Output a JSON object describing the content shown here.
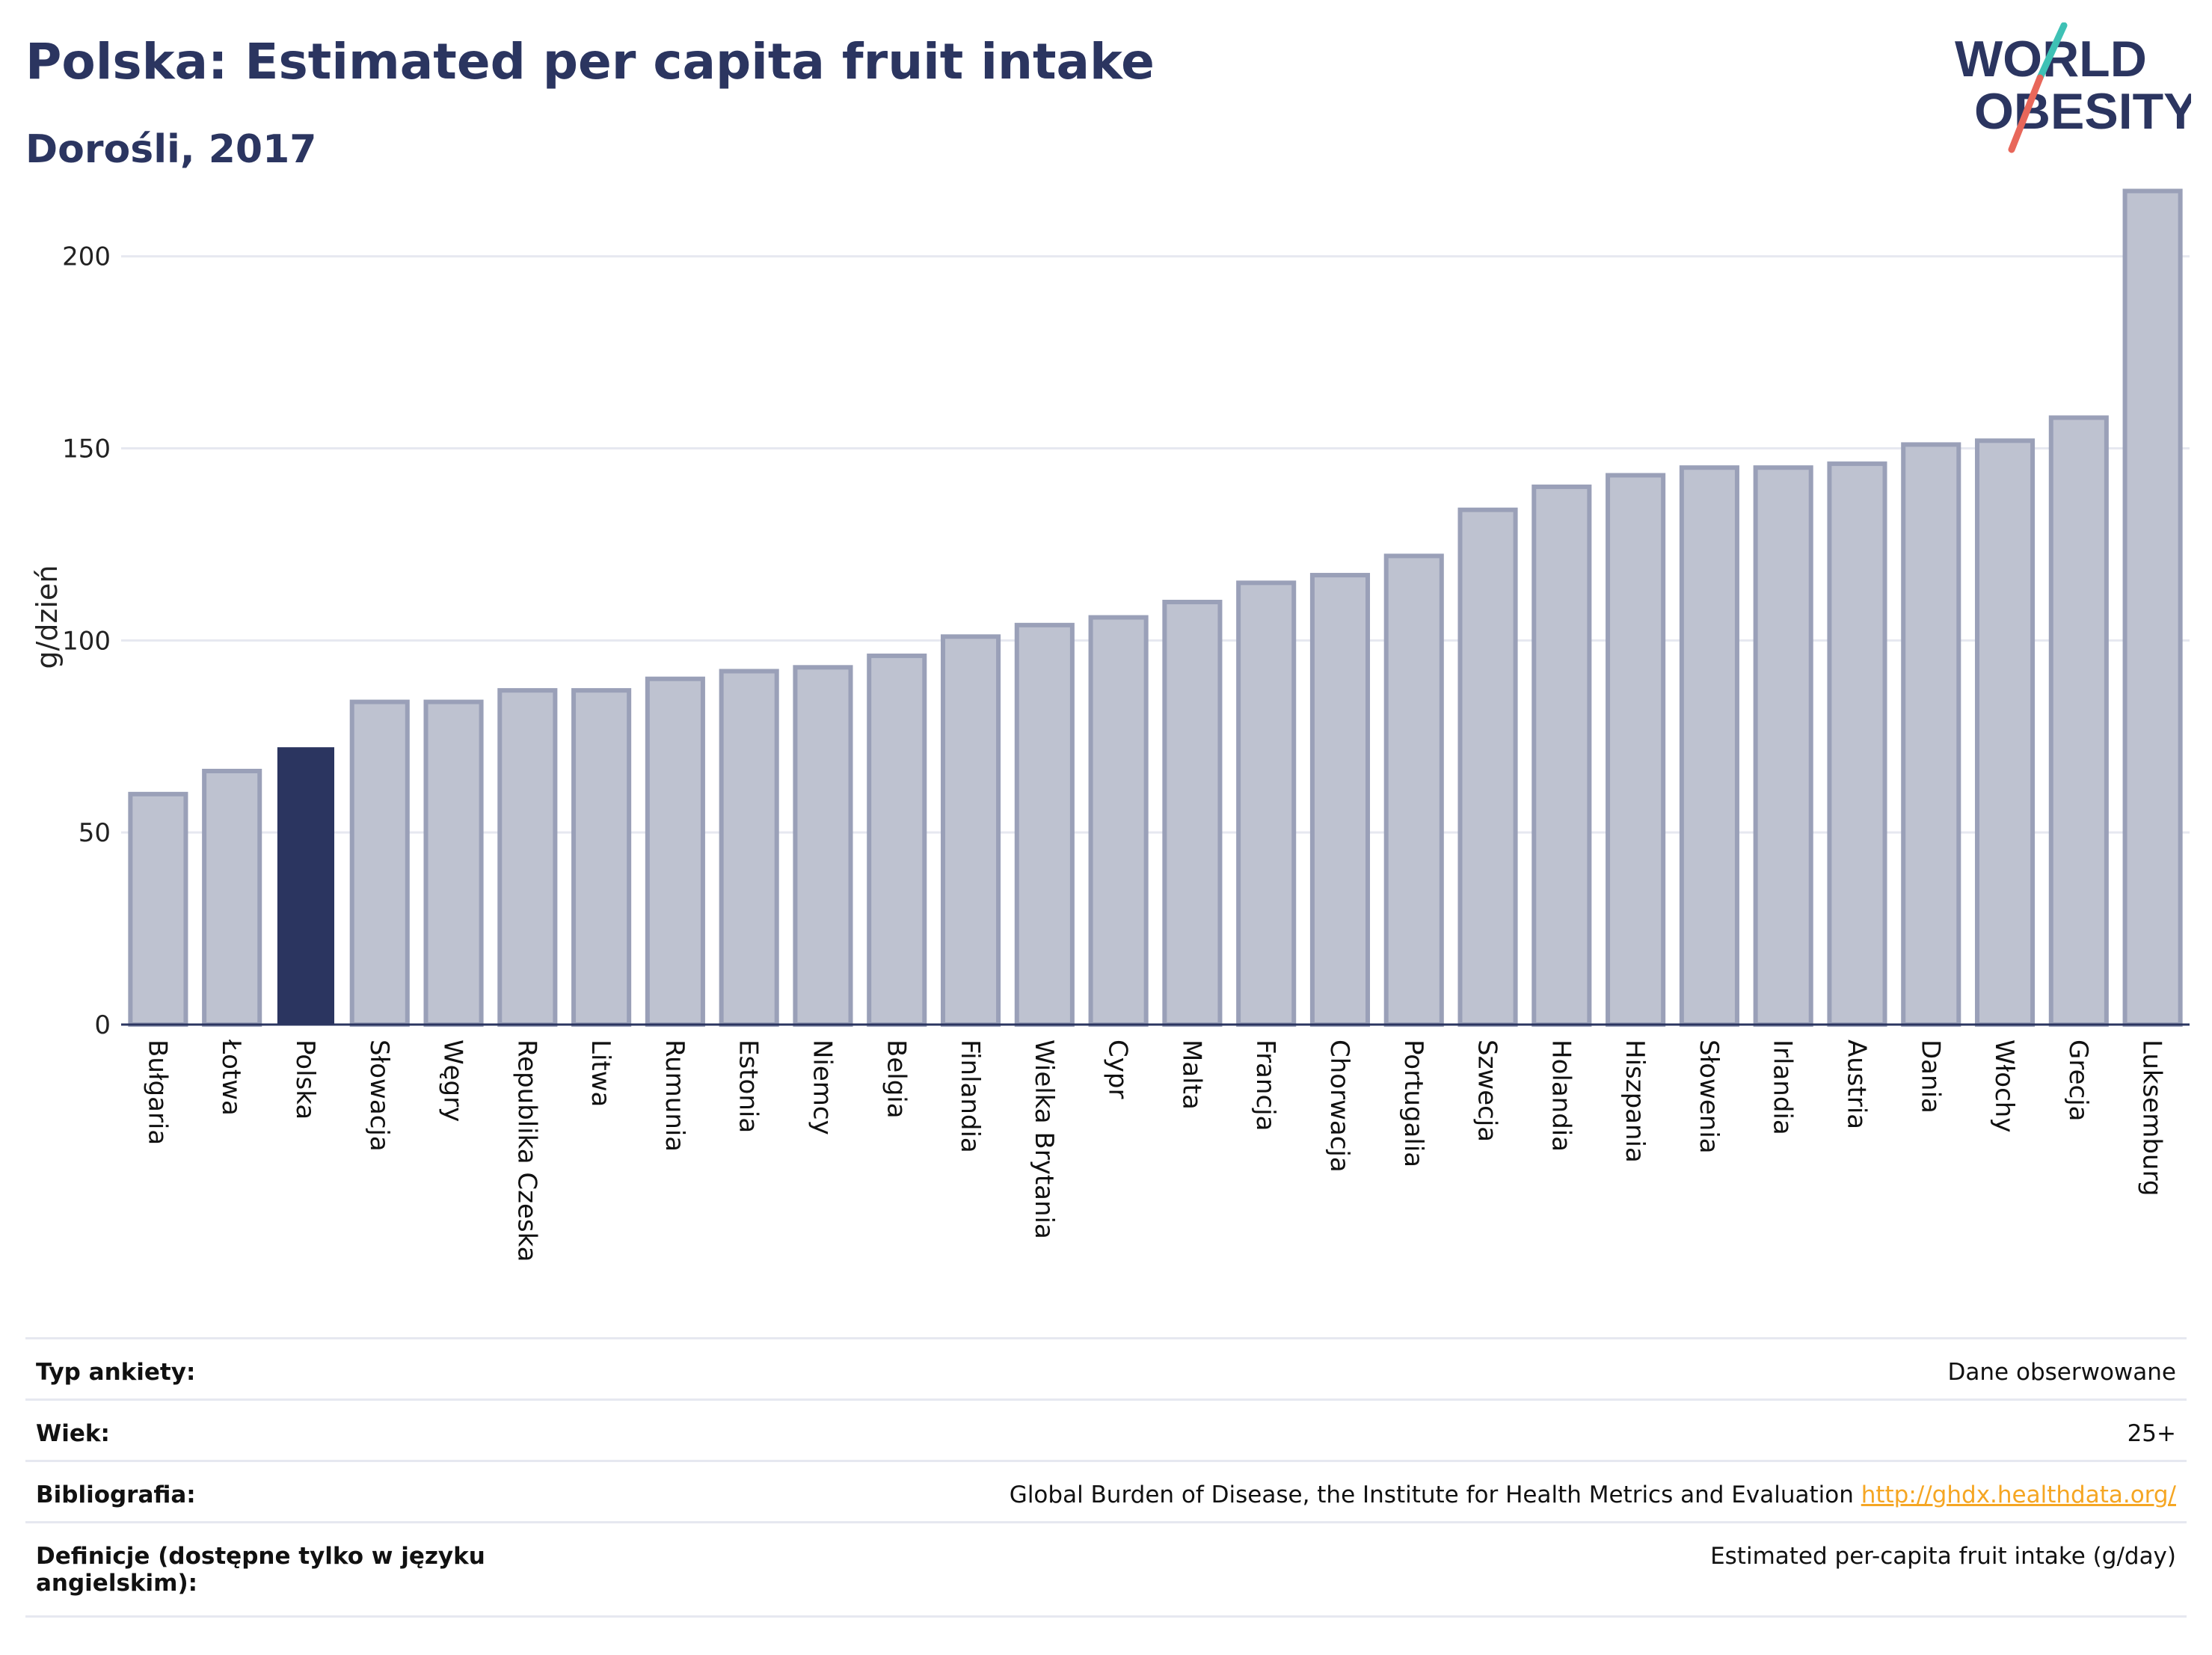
{
  "title": "Polska: Estimated per capita fruit intake",
  "subtitle": "Dorośli, 2017",
  "logo": {
    "line1": "WORLD",
    "line2": "OBESITY",
    "accent_colors": [
      "#3ec1b5",
      "#e8675a"
    ],
    "text_color": "#2b3560"
  },
  "colors": {
    "highlight": "#2b3560",
    "bar": "#bec2d0",
    "bar_border": "#9aa0b8",
    "grid": "#e6e8f0",
    "axis": "#2b3560"
  },
  "chart_data": {
    "type": "bar",
    "ylabel": "g/dzień",
    "xlabel": "",
    "ylim": [
      0,
      220
    ],
    "yticks": [
      0,
      50,
      100,
      150,
      200
    ],
    "grid": true,
    "highlight": "Polska",
    "categories": [
      "Bułgaria",
      "Łotwa",
      "Polska",
      "Słowacja",
      "Węgry",
      "Republika Czeska",
      "Litwa",
      "Rumunia",
      "Estonia",
      "Niemcy",
      "Belgia",
      "Finlandia",
      "Wielka Brytania",
      "Cypr",
      "Malta",
      "Francja",
      "Chorwacja",
      "Portugalia",
      "Szwecja",
      "Holandia",
      "Hiszpania",
      "Słowenia",
      "Irlandia",
      "Austria",
      "Dania",
      "Włochy",
      "Grecja",
      "Luksemburg"
    ],
    "values": [
      60,
      66,
      72,
      84,
      84,
      87,
      87,
      90,
      92,
      93,
      96,
      101,
      104,
      106,
      110,
      115,
      117,
      122,
      134,
      140,
      143,
      145,
      145,
      146,
      151,
      152,
      158,
      217
    ]
  },
  "meta": [
    {
      "label": "Typ ankiety:",
      "value": "Dane obserwowane"
    },
    {
      "label": "Wiek:",
      "value": "25+"
    },
    {
      "label": "Bibliografia:",
      "value": "Global Burden of Disease, the Institute for Health Metrics and Evaluation",
      "link": "http://ghdx.healthdata.org/"
    },
    {
      "label": "Definicje (dostępne tylko w języku angielskim):",
      "value": "Estimated per-capita fruit intake (g/day)"
    }
  ]
}
